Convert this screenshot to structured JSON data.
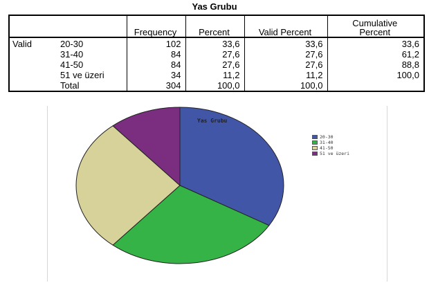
{
  "table": {
    "title": "Yas Grubu",
    "headers": {
      "stub": "",
      "frequency": "Frequency",
      "percent": "Percent",
      "valid_percent": "Valid Percent",
      "cumulative_percent_line1": "Cumulative",
      "cumulative_percent_line2": "Percent"
    },
    "group_label": "Valid",
    "rows": [
      {
        "label": "20-30",
        "frequency": "102",
        "percent": "33,6",
        "valid_percent": "33,6",
        "cumulative_percent": "33,6"
      },
      {
        "label": "31-40",
        "frequency": "84",
        "percent": "27,6",
        "valid_percent": "27,6",
        "cumulative_percent": "61,2"
      },
      {
        "label": "41-50",
        "frequency": "84",
        "percent": "27,6",
        "valid_percent": "27,6",
        "cumulative_percent": "88,8"
      },
      {
        "label": "51 ve üzeri",
        "frequency": "34",
        "percent": "11,2",
        "valid_percent": "11,2",
        "cumulative_percent": "100,0"
      },
      {
        "label": "Total",
        "frequency": "304",
        "percent": "100,0",
        "valid_percent": "100,0",
        "cumulative_percent": ""
      }
    ]
  },
  "chart_data": {
    "type": "pie",
    "title": "Yas Grubu",
    "categories": [
      "20-30",
      "31-40",
      "41-50",
      "51 ve üzeri"
    ],
    "values": [
      102,
      84,
      84,
      34
    ],
    "colors": [
      "#4256a8",
      "#35b346",
      "#d7d19a",
      "#7b2d80"
    ],
    "legend_position": "right"
  }
}
